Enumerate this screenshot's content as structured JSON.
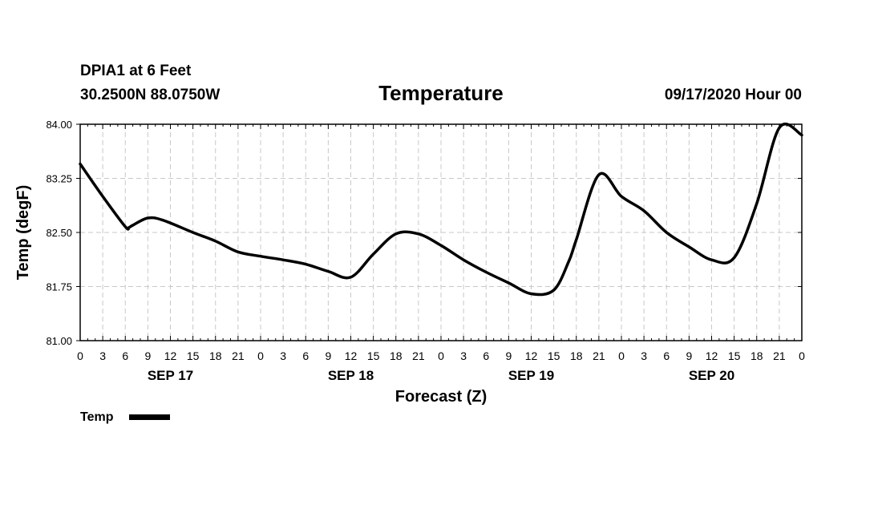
{
  "header": {
    "station": "DPIA1 at 6 Feet",
    "coords": "30.2500N 88.0750W",
    "run": "09/17/2020 Hour 00"
  },
  "legend": {
    "label": "Temp"
  },
  "colors": {
    "line": "#000000",
    "grid": "#c8c8c8",
    "background": "#ffffff"
  },
  "chart_data": {
    "type": "line",
    "title": "Temperature",
    "xlabel": "Forecast (Z)",
    "ylabel": "Temp (degF)",
    "ylim": [
      81.0,
      84.0
    ],
    "yticks": [
      "84.00",
      "83.25",
      "82.50",
      "81.75",
      "81.00"
    ],
    "ytick_values": [
      84.0,
      83.25,
      82.5,
      81.75,
      81.0
    ],
    "xlim": [
      0,
      96
    ],
    "xtick_hours": [
      0,
      3,
      6,
      9,
      12,
      15,
      18,
      21,
      24,
      27,
      30,
      33,
      36,
      39,
      42,
      45,
      48,
      51,
      54,
      57,
      60,
      63,
      66,
      69,
      72,
      75,
      78,
      81,
      84,
      87,
      90,
      93,
      96
    ],
    "xtick_labels": [
      "0",
      "3",
      "6",
      "9",
      "12",
      "15",
      "18",
      "21",
      "0",
      "3",
      "6",
      "9",
      "12",
      "15",
      "18",
      "21",
      "0",
      "3",
      "6",
      "9",
      "12",
      "15",
      "18",
      "21",
      "0",
      "3",
      "6",
      "9",
      "12",
      "15",
      "18",
      "21",
      "0"
    ],
    "day_labels": [
      {
        "label": "SEP 17",
        "hour": 12
      },
      {
        "label": "SEP 18",
        "hour": 36
      },
      {
        "label": "SEP 19",
        "hour": 60
      },
      {
        "label": "SEP 20",
        "hour": 84
      }
    ],
    "grid": true,
    "legend_position": "bottom-left",
    "series": [
      {
        "name": "Temp",
        "x": [
          0,
          3,
          6,
          6.5,
          7,
          9,
          11,
          15,
          18,
          21,
          24,
          27,
          30,
          33,
          36,
          39,
          42,
          45,
          48,
          51,
          54,
          57,
          60,
          63,
          65,
          66,
          69,
          72,
          75,
          78,
          81,
          84,
          87,
          90,
          93,
          96
        ],
        "values": [
          83.45,
          83.0,
          82.58,
          82.57,
          82.6,
          82.7,
          82.67,
          82.5,
          82.38,
          82.23,
          82.17,
          82.12,
          82.06,
          81.96,
          81.88,
          82.2,
          82.48,
          82.48,
          82.32,
          82.12,
          81.95,
          81.8,
          81.65,
          81.7,
          82.1,
          82.4,
          83.3,
          83.0,
          82.8,
          82.5,
          82.3,
          82.12,
          82.15,
          82.9,
          83.95,
          83.85
        ]
      }
    ]
  }
}
